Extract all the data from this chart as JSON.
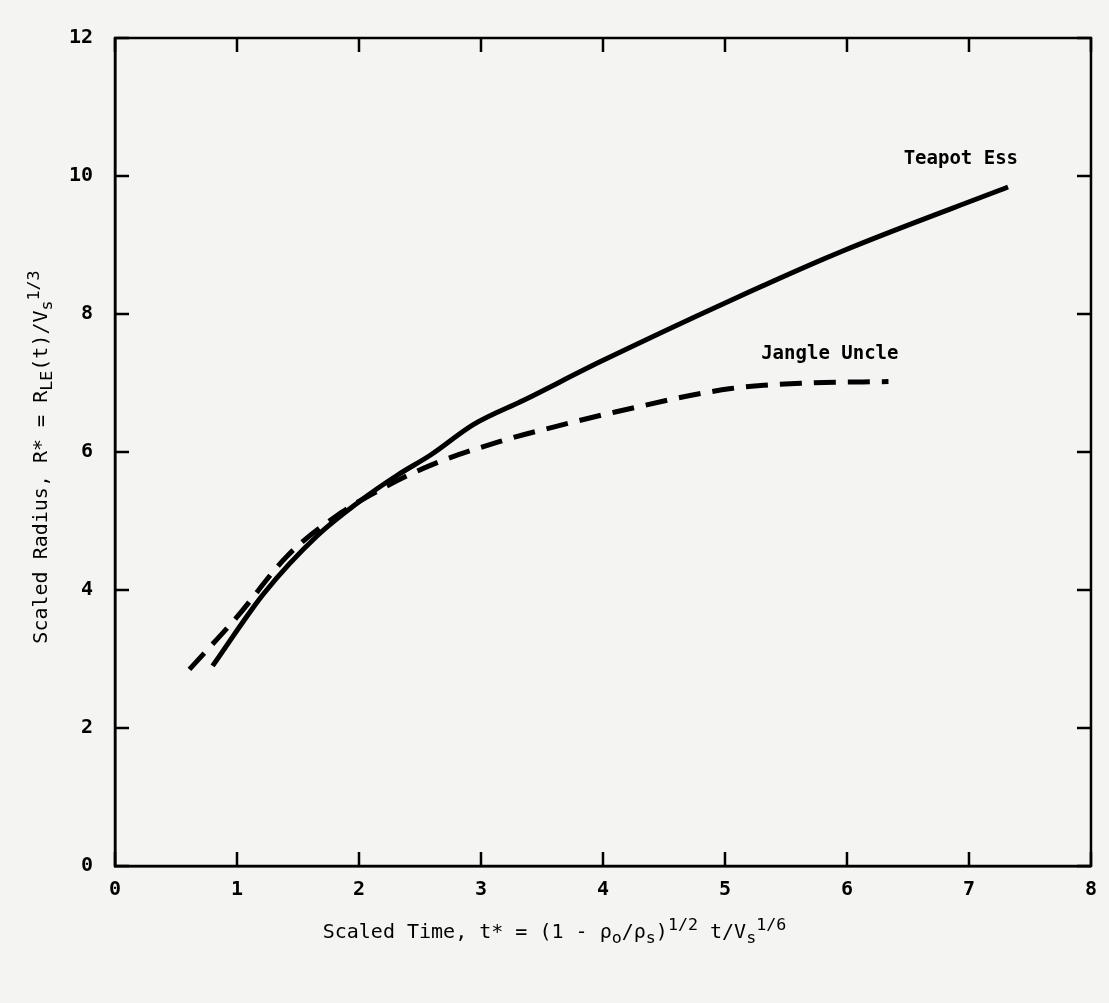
{
  "chart_data": {
    "type": "line",
    "xlabel": "Scaled Time, t* = (1 - ρ$_{o}$/ρ$_{s}$)$^{1/2}$ t/V$_{s}$$^{1/6}$",
    "ylabel": "Scaled Radius, R* = R$_{LE}$(t)/V$_{s}$$^{1/3}$",
    "xlim": [
      0,
      8
    ],
    "xticks": [
      0,
      1,
      2,
      3,
      4,
      5,
      6,
      7,
      8
    ],
    "ylim": [
      0,
      12
    ],
    "yticks": [
      0,
      2,
      4,
      6,
      8,
      10,
      12
    ],
    "grid": false,
    "legend": false,
    "marker": "none",
    "series": [
      {
        "name": "Teapot Ess",
        "color": "#000000",
        "line_style": "solid",
        "x": [
          0.8,
          1.22,
          1.66,
          2.04,
          2.32,
          2.59,
          2.94,
          3.35,
          3.98,
          5.05,
          5.96,
          7.32
        ],
        "values": [
          2.9,
          3.95,
          4.79,
          5.33,
          5.67,
          5.96,
          6.4,
          6.75,
          7.31,
          8.2,
          8.91,
          9.84
        ]
      },
      {
        "name": "Jangle Uncle",
        "color": "#000000",
        "line_style": "dashed",
        "x": [
          0.61,
          1.0,
          1.41,
          1.82,
          2.2,
          2.59,
          3.15,
          3.68,
          4.1,
          5.05,
          5.67,
          6.34
        ],
        "values": [
          2.85,
          3.61,
          4.49,
          5.08,
          5.48,
          5.81,
          6.15,
          6.4,
          6.58,
          6.92,
          7.0,
          7.02
        ]
      }
    ]
  }
}
